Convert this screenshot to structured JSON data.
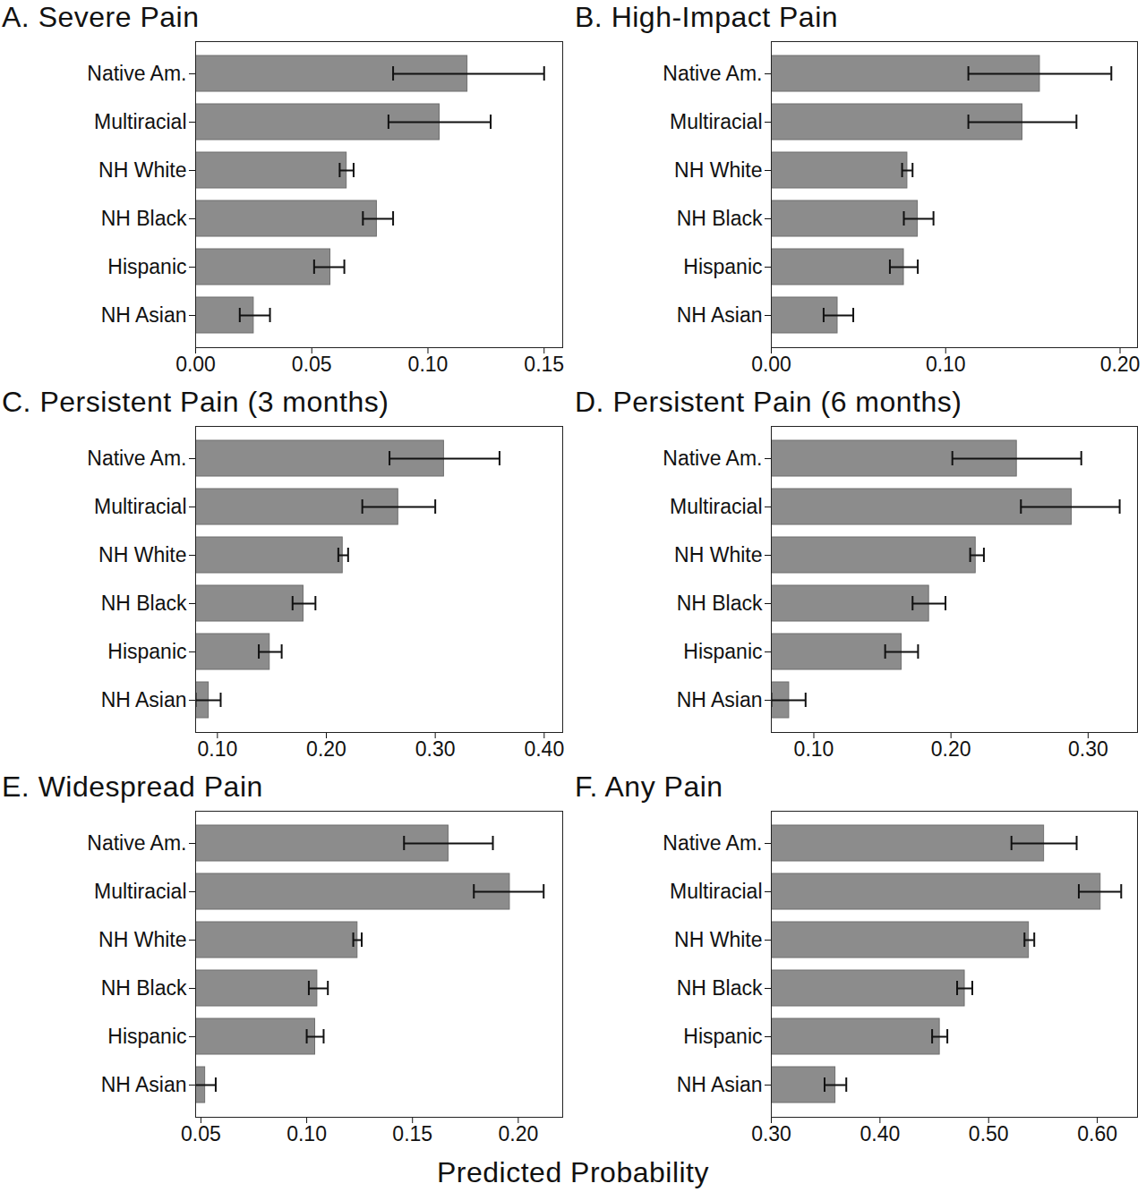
{
  "x_label": "Predicted Probability",
  "chart_data": [
    {
      "type": "bar",
      "orientation": "horizontal",
      "title": "A. Severe Pain",
      "color": "#8c8c8c",
      "categories": [
        "Native Am.",
        "Multiracial",
        "NH White",
        "NH Black",
        "Hispanic",
        "NH Asian"
      ],
      "values": [
        0.117,
        0.105,
        0.065,
        0.078,
        0.058,
        0.025
      ],
      "error_low": [
        0.085,
        0.083,
        0.062,
        0.072,
        0.051,
        0.019
      ],
      "error_high": [
        0.15,
        0.127,
        0.068,
        0.085,
        0.064,
        0.032
      ],
      "xlim": [
        0,
        0.158
      ],
      "xticks": [
        {
          "value": 0,
          "label": "0.00"
        },
        {
          "value": 0.05,
          "label": "0.05"
        },
        {
          "value": 0.1,
          "label": "0.10"
        },
        {
          "value": 0.15,
          "label": "0.15"
        }
      ]
    },
    {
      "type": "bar",
      "orientation": "horizontal",
      "title": "B. High-Impact Pain",
      "color": "#8c8c8c",
      "categories": [
        "Native Am.",
        "Multiracial",
        "NH White",
        "NH Black",
        "Hispanic",
        "NH Asian"
      ],
      "values": [
        0.154,
        0.144,
        0.078,
        0.084,
        0.076,
        0.038
      ],
      "error_low": [
        0.113,
        0.113,
        0.075,
        0.076,
        0.068,
        0.03
      ],
      "error_high": [
        0.195,
        0.175,
        0.081,
        0.093,
        0.084,
        0.047
      ],
      "xlim": [
        0,
        0.21
      ],
      "xticks": [
        {
          "value": 0,
          "label": "0.00"
        },
        {
          "value": 0.1,
          "label": "0.10"
        },
        {
          "value": 0.2,
          "label": "0.20"
        }
      ]
    },
    {
      "type": "bar",
      "orientation": "horizontal",
      "title": "C. Persistent Pain (3 months)",
      "color": "#8c8c8c",
      "categories": [
        "Native Am.",
        "Multiracial",
        "NH White",
        "NH Black",
        "Hispanic",
        "NH Asian"
      ],
      "values": [
        0.308,
        0.266,
        0.215,
        0.179,
        0.148,
        0.092
      ],
      "error_low": [
        0.258,
        0.233,
        0.211,
        0.169,
        0.138,
        0.08
      ],
      "error_high": [
        0.359,
        0.3,
        0.22,
        0.19,
        0.159,
        0.103
      ],
      "xlim": [
        0.08,
        0.417
      ],
      "xticks": [
        {
          "value": 0.1,
          "label": "0.10"
        },
        {
          "value": 0.2,
          "label": "0.20"
        },
        {
          "value": 0.3,
          "label": "0.30"
        },
        {
          "value": 0.4,
          "label": "0.40"
        }
      ]
    },
    {
      "type": "bar",
      "orientation": "horizontal",
      "title": "D. Persistent Pain (6 months)",
      "color": "#8c8c8c",
      "categories": [
        "Native Am.",
        "Multiracial",
        "NH White",
        "NH Black",
        "Hispanic",
        "NH Asian"
      ],
      "values": [
        0.248,
        0.288,
        0.218,
        0.184,
        0.164,
        0.082
      ],
      "error_low": [
        0.201,
        0.251,
        0.214,
        0.172,
        0.152,
        0.069
      ],
      "error_high": [
        0.295,
        0.323,
        0.224,
        0.196,
        0.176,
        0.094
      ],
      "xlim": [
        0.069,
        0.336
      ],
      "xticks": [
        {
          "value": 0.1,
          "label": "0.10"
        },
        {
          "value": 0.2,
          "label": "0.20"
        },
        {
          "value": 0.3,
          "label": "0.30"
        }
      ]
    },
    {
      "type": "bar",
      "orientation": "horizontal",
      "title": "E. Widespread Pain",
      "color": "#8c8c8c",
      "categories": [
        "Native Am.",
        "Multiracial",
        "NH White",
        "NH Black",
        "Hispanic",
        "NH Asian"
      ],
      "values": [
        0.167,
        0.196,
        0.124,
        0.105,
        0.104,
        0.052
      ],
      "error_low": [
        0.146,
        0.179,
        0.122,
        0.101,
        0.1,
        0.047
      ],
      "error_high": [
        0.188,
        0.212,
        0.126,
        0.11,
        0.108,
        0.057
      ],
      "xlim": [
        0.0475,
        0.221
      ],
      "xticks": [
        {
          "value": 0.05,
          "label": "0.05"
        },
        {
          "value": 0.1,
          "label": "0.10"
        },
        {
          "value": 0.15,
          "label": "0.15"
        },
        {
          "value": 0.2,
          "label": "0.20"
        }
      ]
    },
    {
      "type": "bar",
      "orientation": "horizontal",
      "title": "F. Any Pain",
      "color": "#8c8c8c",
      "categories": [
        "Native Am.",
        "Multiracial",
        "NH White",
        "NH Black",
        "Hispanic",
        "NH Asian"
      ],
      "values": [
        0.551,
        0.603,
        0.537,
        0.478,
        0.455,
        0.359
      ],
      "error_low": [
        0.521,
        0.583,
        0.533,
        0.471,
        0.448,
        0.349
      ],
      "error_high": [
        0.581,
        0.622,
        0.542,
        0.485,
        0.462,
        0.369
      ],
      "xlim": [
        0.3,
        0.637
      ],
      "xticks": [
        {
          "value": 0.3,
          "label": "0.30"
        },
        {
          "value": 0.4,
          "label": "0.40"
        },
        {
          "value": 0.5,
          "label": "0.50"
        },
        {
          "value": 0.6,
          "label": "0.60"
        }
      ]
    }
  ]
}
